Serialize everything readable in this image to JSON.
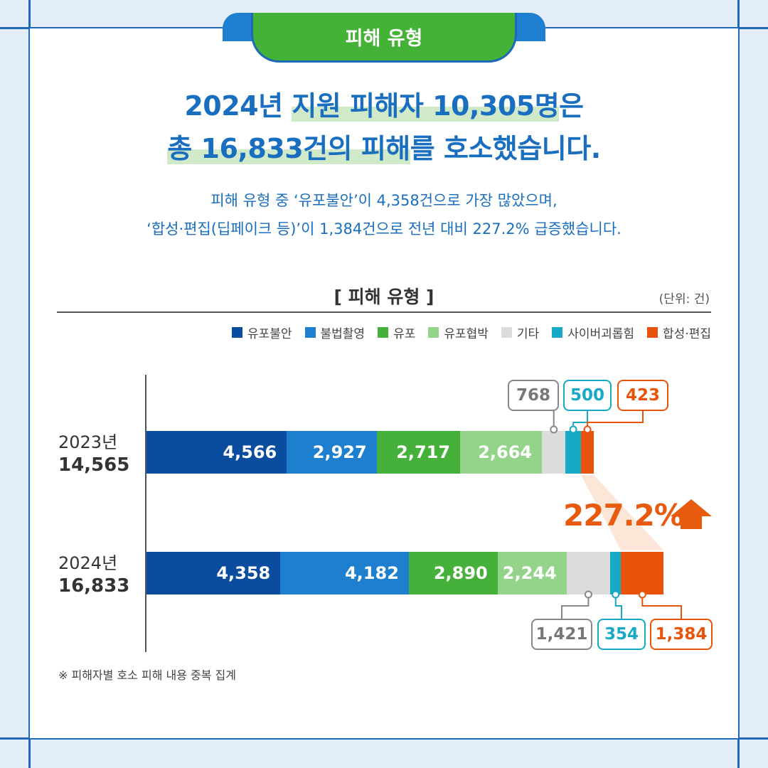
{
  "header": {
    "tab_label": "피해 유형"
  },
  "headline": {
    "line1_pre": "2024년 ",
    "line1_hl": "지원 피해자 10,305명",
    "line1_post": "은",
    "line2_hl": "총 16,833건의 피해",
    "line2_post": "를 호소했습니다."
  },
  "summary": {
    "line1": "피해 유형 중 ‘유포불안’이 4,358건으로 가장 많았으며,",
    "line2": "‘합성·편집(딥페이크 등)’이 1,384건으로 전년 대비 227.2% 급증했습니다."
  },
  "chart_data": {
    "type": "bar",
    "orientation": "horizontal",
    "stacked": true,
    "title": "[ 피해 유형 ]",
    "unit_note": "(단위: 건)",
    "legend_position": "top-right",
    "categories": [
      "2023년",
      "2024년"
    ],
    "totals": [
      "14,565",
      "16,833"
    ],
    "series": [
      {
        "name": "유포불안",
        "color": "#0a4d9e",
        "values": [
          4566,
          4358
        ],
        "labels": [
          "4,566",
          "4,358"
        ]
      },
      {
        "name": "불법촬영",
        "color": "#1e7fcf",
        "values": [
          2927,
          4182
        ],
        "labels": [
          "2,927",
          "4,182"
        ]
      },
      {
        "name": "유포",
        "color": "#45b13a",
        "values": [
          2717,
          2890
        ],
        "labels": [
          "2,717",
          "2,890"
        ]
      },
      {
        "name": "유포협박",
        "color": "#93d38a",
        "values": [
          2664,
          2244
        ],
        "labels": [
          "2,664",
          "2,244"
        ]
      },
      {
        "name": "기타",
        "color": "#dcdcdc",
        "values": [
          768,
          1421
        ],
        "labels": [
          "768",
          "1,421"
        ]
      },
      {
        "name": "사이버괴롭힘",
        "color": "#17a9c6",
        "values": [
          500,
          354
        ],
        "labels": [
          "500",
          "354"
        ]
      },
      {
        "name": "합성·편집",
        "color": "#e8540c",
        "values": [
          423,
          1384
        ],
        "labels": [
          "423",
          "1,384"
        ]
      }
    ],
    "annotation": "227.2%"
  },
  "footnote": "※ 피해자별 호소 피해 내용 중복 집계"
}
